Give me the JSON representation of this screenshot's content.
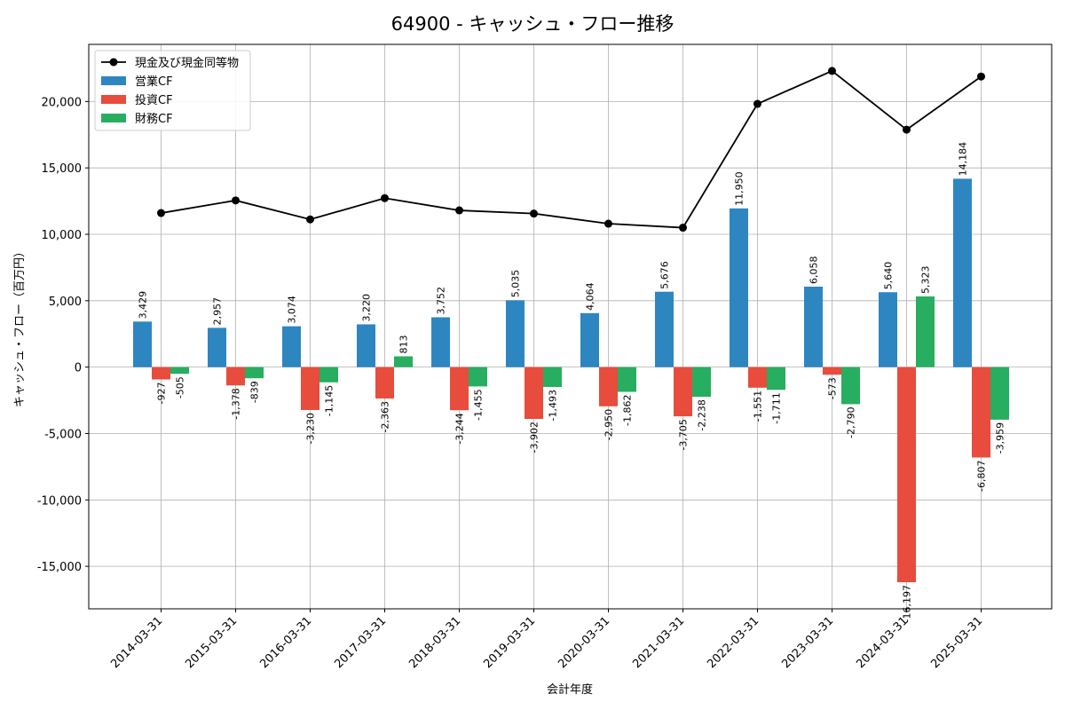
{
  "chart_data": {
    "type": "bar",
    "title": "64900 - キャッシュ・フロー推移",
    "xlabel": "会計年度",
    "ylabel": "キャッシュ・フロー（百万円）",
    "ylim": [
      -18200,
      24300
    ],
    "yticks": [
      -15000,
      -10000,
      -5000,
      0,
      5000,
      10000,
      15000,
      20000
    ],
    "ytick_labels": [
      "-15,000",
      "-10,000",
      "-5,000",
      "0",
      "5,000",
      "10,000",
      "15,000",
      "20,000"
    ],
    "grid": true,
    "legend_position": "top-left",
    "categories": [
      "2014-03-31",
      "2015-03-31",
      "2016-03-31",
      "2017-03-31",
      "2018-03-31",
      "2019-03-31",
      "2020-03-31",
      "2021-03-31",
      "2022-03-31",
      "2023-03-31",
      "2024-03-31",
      "2025-03-31"
    ],
    "series": [
      {
        "name": "営業CF",
        "kind": "bar",
        "color": "#2e86c1",
        "values": [
          3429,
          2957,
          3074,
          3220,
          3752,
          5035,
          4064,
          5676,
          11950,
          6058,
          5640,
          14184
        ],
        "labels": [
          "3,429",
          "2,957",
          "3,074",
          "3,220",
          "3,752",
          "5,035",
          "4,064",
          "5,676",
          "11,950",
          "6,058",
          "5,640",
          "14,184"
        ]
      },
      {
        "name": "投資CF",
        "kind": "bar",
        "color": "#e74c3c",
        "values": [
          -927,
          -1378,
          -3230,
          -2363,
          -3244,
          -3902,
          -2950,
          -3705,
          -1551,
          -573,
          -16197,
          -6807
        ],
        "labels": [
          "-927",
          "-1,378",
          "-3,230",
          "-2,363",
          "-3,244",
          "-3,902",
          "-2,950",
          "-3,705",
          "-1,551",
          "-573",
          "-16,197",
          "-6,807"
        ]
      },
      {
        "name": "財務CF",
        "kind": "bar",
        "color": "#27ae60",
        "values": [
          -505,
          -839,
          -1145,
          813,
          -1455,
          -1493,
          -1862,
          -2238,
          -1711,
          -2790,
          5323,
          -3959
        ],
        "labels": [
          "-505",
          "-839",
          "-1,145",
          "813",
          "-1,455",
          "-1,493",
          "-1,862",
          "-2,238",
          "-1,711",
          "-2,790",
          "5,323",
          "-3,959"
        ]
      },
      {
        "name": "現金及び現金同等物",
        "kind": "line",
        "color": "#000000",
        "values": [
          11600,
          12550,
          11120,
          12720,
          11800,
          11560,
          10800,
          10500,
          19820,
          22300,
          17880,
          21880
        ]
      }
    ]
  }
}
